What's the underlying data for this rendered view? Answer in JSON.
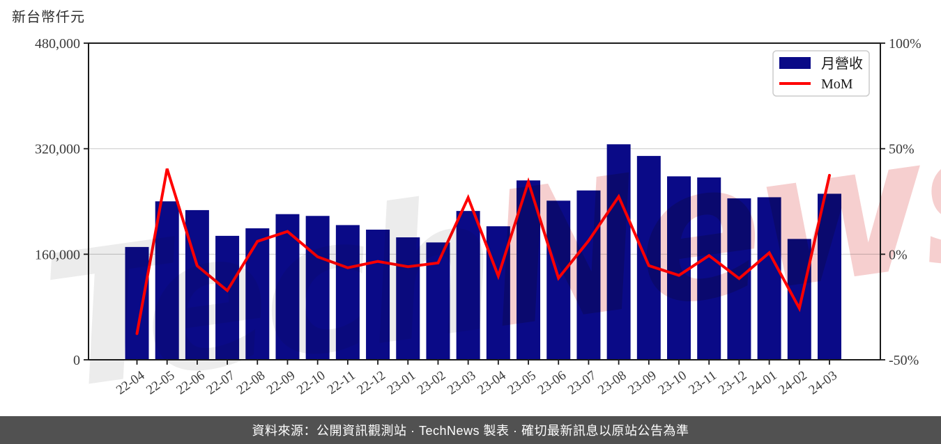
{
  "chart_title": {
    "text": "新台幣仟元"
  },
  "legend": {
    "items": [
      {
        "label": "月營收",
        "type": "bar",
        "color": "#0a0a87"
      },
      {
        "label": "MoM",
        "type": "line",
        "color": "#ff0000"
      }
    ]
  },
  "watermark": {
    "part1": "Tech",
    "part1_color": "#ececec",
    "part2": "News",
    "part2_color": "#f6cfcf"
  },
  "footer": {
    "text": "資料來源：公開資訊觀測站 · TechNews 製表 · 確切最新訊息以原站公告為準",
    "background": "#515151",
    "text_color": "#ffffff"
  },
  "chart_data": {
    "type": "bar+line",
    "title": "新台幣仟元",
    "grid": "horizontal",
    "legend_position": "top-right",
    "categories": [
      "22-04",
      "22-05",
      "22-06",
      "22-07",
      "22-08",
      "22-09",
      "22-10",
      "22-11",
      "22-12",
      "23-01",
      "23-02",
      "23-03",
      "23-04",
      "23-05",
      "23-06",
      "23-07",
      "23-08",
      "23-09",
      "23-10",
      "23-11",
      "23-12",
      "24-01",
      "24-02",
      "24-03"
    ],
    "series": [
      {
        "name": "月營收",
        "type": "bar",
        "axis": "left",
        "unit": "新台幣仟元",
        "color": "#0a0a87",
        "values": [
          171000,
          240200,
          226900,
          187900,
          199300,
          220800,
          218100,
          204200,
          197300,
          185600,
          177900,
          225600,
          202400,
          271900,
          241200,
          256700,
          326700,
          309000,
          278100,
          276400,
          244700,
          246400,
          183200,
          251700
        ]
      },
      {
        "name": "MoM",
        "type": "line",
        "axis": "right",
        "unit": "%",
        "color": "#ff0000",
        "values": [
          -37.6,
          40.5,
          -5.5,
          -17.2,
          6.1,
          10.8,
          -1.2,
          -6.4,
          -3.4,
          -5.9,
          -4.1,
          26.8,
          -10.3,
          34.3,
          -11.3,
          6.4,
          27.3,
          -5.4,
          -10.0,
          -0.6,
          -11.5,
          0.7,
          -25.6,
          37.4
        ]
      }
    ],
    "y_left": {
      "ticks": [
        0,
        160000,
        320000,
        480000
      ],
      "tick_labels": [
        "0",
        "160,000",
        "320,000",
        "480,000"
      ],
      "range": [
        0,
        480000
      ]
    },
    "y_right": {
      "ticks": [
        -50,
        0,
        50,
        100
      ],
      "tick_labels": [
        "-50%",
        "0%",
        "50%",
        "100%"
      ],
      "range": [
        -50,
        100
      ]
    },
    "colors": {
      "gridline": "#cfcfcf",
      "spine": "#1a1a1a",
      "tick_label": "#3a3a3a"
    }
  }
}
